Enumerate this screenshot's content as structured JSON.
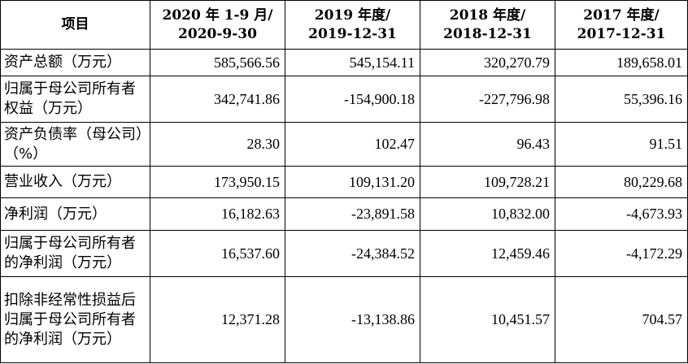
{
  "table": {
    "headers": [
      {
        "line1": "项目",
        "line2": ""
      },
      {
        "line1": "2020 年 1-9 月/",
        "line2": "2020-9-30"
      },
      {
        "line1": "2019 年度/",
        "line2": "2019-12-31"
      },
      {
        "line1": "2018 年度/",
        "line2": "2018-12-31"
      },
      {
        "line1": "2017 年度/",
        "line2": "2017-12-31"
      }
    ],
    "rows": [
      {
        "label": "资产总额（万元）",
        "values": [
          "585,566.56",
          "545,154.11",
          "320,270.79",
          "189,658.01"
        ]
      },
      {
        "label": "归属于母公司所有者权益（万元）",
        "values": [
          "342,741.86",
          "-154,900.18",
          "-227,796.98",
          "55,396.16"
        ]
      },
      {
        "label": "资产负债率（母公司）（%）",
        "values": [
          "28.30",
          "102.47",
          "96.43",
          "91.51"
        ]
      },
      {
        "label": "营业收入（万元）",
        "values": [
          "173,950.15",
          "109,131.20",
          "109,728.21",
          "80,229.68"
        ]
      },
      {
        "label": "净利润（万元）",
        "values": [
          "16,182.63",
          "-23,891.58",
          "10,832.00",
          "-4,673.93"
        ]
      },
      {
        "label": "归属于母公司所有者的净利润（万元）",
        "values": [
          "16,537.60",
          "-24,384.52",
          "12,459.46",
          "-4,172.29"
        ]
      },
      {
        "label": "扣除非经常性损益后归属于母公司所有者的净利润（万元）",
        "values": [
          "12,371.28",
          "-13,138.86",
          "10,451.57",
          "704.57"
        ]
      }
    ]
  }
}
